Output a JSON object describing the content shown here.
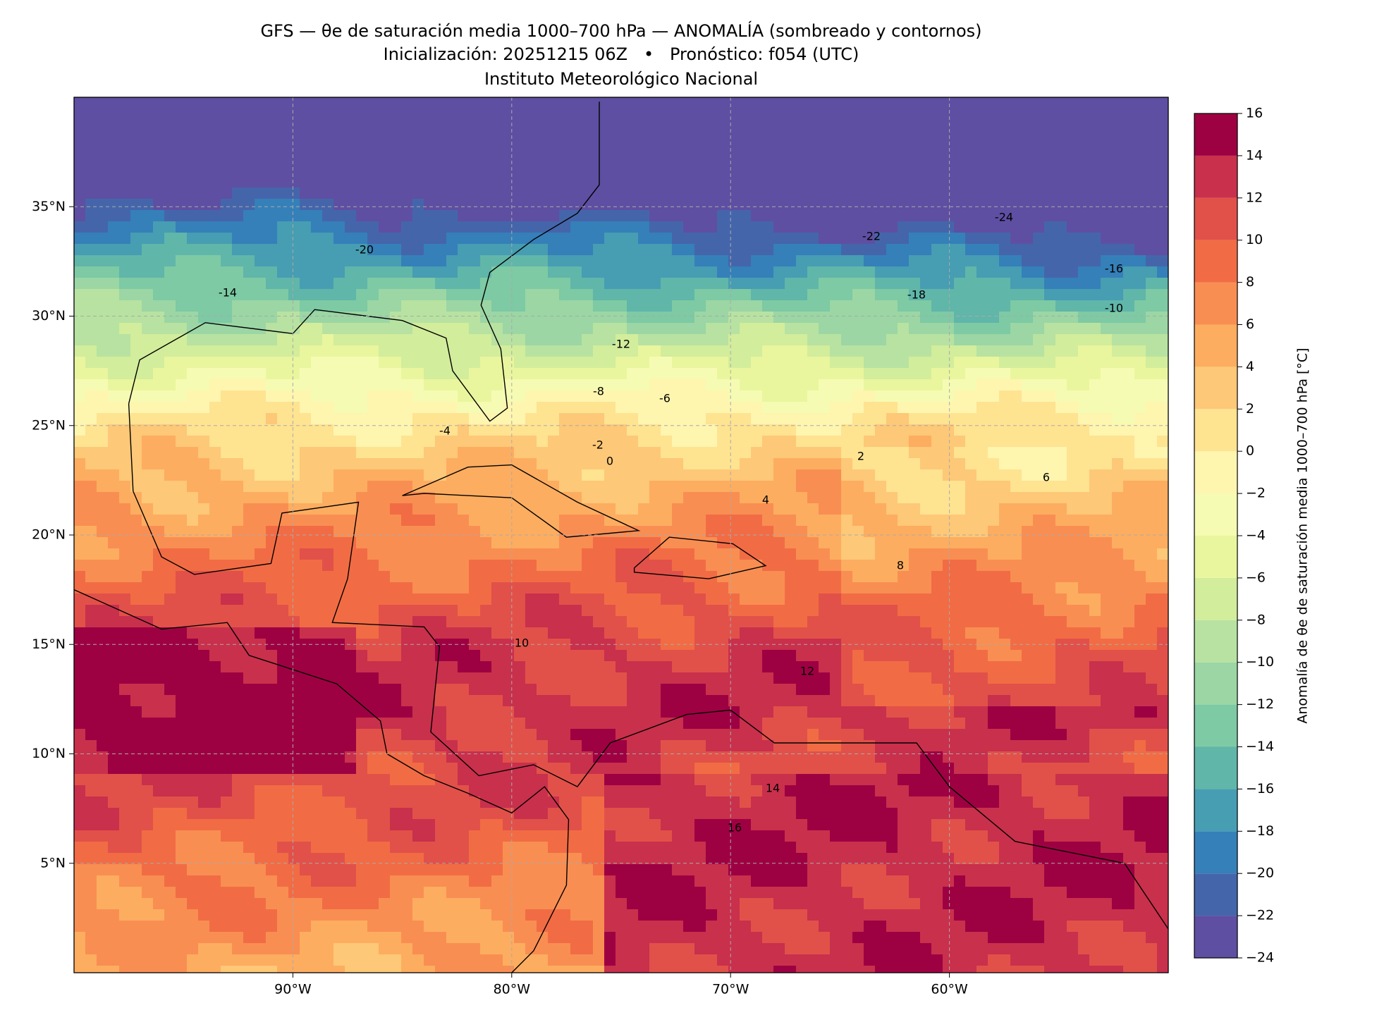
{
  "header": {
    "title": "GFS — θe de saturación media 1000–700 hPa — ANOMALÍA (sombreado y contornos)",
    "subtitle": "Inicialización: 20251215 06Z   •   Pronóstico: f054 (UTC)",
    "credit": "Instituto Meteorológico Nacional"
  },
  "map": {
    "xlim": [
      -100,
      -50
    ],
    "ylim": [
      0,
      40
    ],
    "xticks": [
      {
        "value": -90,
        "label": "90°W"
      },
      {
        "value": -80,
        "label": "80°W"
      },
      {
        "value": -70,
        "label": "70°W"
      },
      {
        "value": -60,
        "label": "60°W"
      }
    ],
    "yticks": [
      {
        "value": 5,
        "label": "5°N"
      },
      {
        "value": 10,
        "label": "10°N"
      },
      {
        "value": 15,
        "label": "15°N"
      },
      {
        "value": 20,
        "label": "20°N"
      },
      {
        "value": 25,
        "label": "25°N"
      },
      {
        "value": 30,
        "label": "30°N"
      },
      {
        "value": 35,
        "label": "35°N"
      }
    ],
    "grid": true,
    "contour_labels": [
      -24,
      -22,
      -20,
      -18,
      -16,
      -14,
      -12,
      -10,
      -8,
      -6,
      -4,
      -2,
      0,
      2,
      4,
      6,
      8,
      10,
      12,
      14,
      16
    ]
  },
  "colorbar": {
    "label": "Anomalía de θe de saturación media 1000–700 hPa [°C]",
    "ticks": [
      {
        "value": -24,
        "label": "−24"
      },
      {
        "value": -22,
        "label": "−22"
      },
      {
        "value": -20,
        "label": "−20"
      },
      {
        "value": -18,
        "label": "−18"
      },
      {
        "value": -16,
        "label": "−16"
      },
      {
        "value": -14,
        "label": "−14"
      },
      {
        "value": -12,
        "label": "−12"
      },
      {
        "value": -10,
        "label": "−10"
      },
      {
        "value": -8,
        "label": "−8"
      },
      {
        "value": -6,
        "label": "−6"
      },
      {
        "value": -4,
        "label": "−4"
      },
      {
        "value": -2,
        "label": "−2"
      },
      0,
      2,
      4,
      6,
      8,
      10,
      12,
      14,
      16
    ],
    "colors": [
      "#5e4fa2",
      "#4565ab",
      "#3580b9",
      "#479db2",
      "#60b6a9",
      "#7dcaa4",
      "#9bd6a4",
      "#b8e2a1",
      "#d2ed9b",
      "#e9f69d",
      "#f6fbb3",
      "#fef5af",
      "#fee391",
      "#fdc877",
      "#fdad60",
      "#f98e52",
      "#f16c44",
      "#e15149",
      "#c9304c",
      "#9e0142"
    ]
  }
}
